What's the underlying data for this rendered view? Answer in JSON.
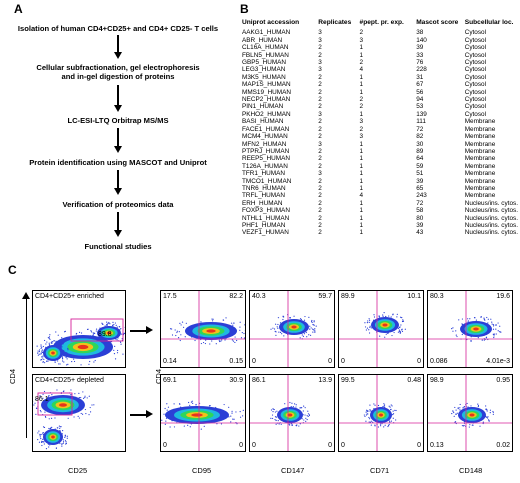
{
  "panels": {
    "a": "A",
    "b": "B",
    "c": "C"
  },
  "flowchart": {
    "steps": [
      "Isolation of human CD4+CD25+ and CD4+ CD25- T cells",
      "Cellular subfractionation, gel electrophoresis\nand in-gel digestion of proteins",
      "LC-ESI-LTQ Orbitrap MS/MS",
      "Protein identification using MASCOT and Uniprot",
      "Verification of proteomics data",
      "Functional studies"
    ]
  },
  "table": {
    "headers": [
      "Uniprot accession",
      "Replicates",
      "#pept. pr. exp.",
      "Mascot score",
      "Subcellular loc."
    ],
    "rows": [
      [
        "AAKG1_HUMAN",
        "3",
        "2",
        "38",
        "Cytosol"
      ],
      [
        "ABR_HUMAN",
        "3",
        "3",
        "140",
        "Cytosol"
      ],
      [
        "CL16A_HUMAN",
        "2",
        "1",
        "39",
        "Cytosol"
      ],
      [
        "FBLN5_HUMAN",
        "2",
        "1",
        "33",
        "Cytosol"
      ],
      [
        "GBP5_HUMAN",
        "3",
        "2",
        "76",
        "Cytosol"
      ],
      [
        "LEG3_HUMAN",
        "3",
        "4",
        "228",
        "Cytosol"
      ],
      [
        "M3K5_HUMAN",
        "2",
        "1",
        "31",
        "Cytosol"
      ],
      [
        "MAP1S_HUMAN",
        "2",
        "1",
        "67",
        "Cytosol"
      ],
      [
        "MMS19_HUMAN",
        "2",
        "1",
        "56",
        "Cytosol"
      ],
      [
        "NECP2_HUMAN",
        "2",
        "2",
        "94",
        "Cytosol"
      ],
      [
        "PIN1_HUMAN",
        "2",
        "2",
        "53",
        "Cytosol"
      ],
      [
        "PKHO2_HUMAN",
        "3",
        "1",
        "139",
        "Cytosol"
      ],
      [
        "BASI_HUMAN",
        "2",
        "3",
        "111",
        "Membrane"
      ],
      [
        "FACE1_HUMAN",
        "2",
        "2",
        "72",
        "Membrane"
      ],
      [
        "MCM4_HUMAN",
        "2",
        "3",
        "82",
        "Membrane"
      ],
      [
        "MFN2_HUMAN",
        "3",
        "1",
        "30",
        "Membrane"
      ],
      [
        "PTPRJ_HUMAN",
        "2",
        "1",
        "89",
        "Membrane"
      ],
      [
        "REEP5_HUMAN",
        "2",
        "1",
        "64",
        "Membrane"
      ],
      [
        "T126A_HUMAN",
        "2",
        "1",
        "59",
        "Membrane"
      ],
      [
        "TFR1_HUMAN",
        "3",
        "1",
        "51",
        "Membrane"
      ],
      [
        "TMCO1_HUMAN",
        "2",
        "1",
        "39",
        "Membrane"
      ],
      [
        "TNR6_HUMAN",
        "2",
        "1",
        "65",
        "Membrane"
      ],
      [
        "TRFL_HUMAN",
        "2",
        "4",
        "243",
        "Membrane"
      ],
      [
        "ERH_HUMAN",
        "2",
        "1",
        "72",
        "Nucleus/ins. cytos."
      ],
      [
        "FOXP3_HUMAN",
        "2",
        "1",
        "58",
        "Nucleus/ins. cytos."
      ],
      [
        "NTHL1_HUMAN",
        "2",
        "1",
        "80",
        "Nucleus/ins. cytos."
      ],
      [
        "PHF1_HUMAN",
        "2",
        "1",
        "39",
        "Nucleus/ins. cytos."
      ],
      [
        "VEZF1_HUMAN",
        "2",
        "1",
        "43",
        "Nucleus/ins. cytos."
      ]
    ]
  },
  "flow_cytometry": {
    "y_axis_label": "CD4",
    "gate_plots": [
      {
        "title": "CD4+CD25+ enriched",
        "gate_value": "89.8"
      },
      {
        "title": "CD4+CD25+ depleted",
        "gate_value": "86.1"
      }
    ],
    "gate_x_label": "CD25",
    "marker_y_label": "CD4",
    "markers": [
      {
        "name": "CD95",
        "enriched": {
          "ul": "17.5",
          "ur": "82.2",
          "ll": "0.14",
          "lr": "0.15"
        },
        "depleted": {
          "ul": "69.1",
          "ur": "30.9",
          "ll": "0",
          "lr": "0"
        }
      },
      {
        "name": "CD147",
        "enriched": {
          "ul": "40.3",
          "ur": "59.7",
          "ll": "0",
          "lr": "0"
        },
        "depleted": {
          "ul": "86.1",
          "ur": "13.9",
          "ll": "0",
          "lr": "0"
        }
      },
      {
        "name": "CD71",
        "enriched": {
          "ul": "89.9",
          "ur": "10.1",
          "ll": "0",
          "lr": "0"
        },
        "depleted": {
          "ul": "99.5",
          "ur": "0.48",
          "ll": "0",
          "lr": "0"
        }
      },
      {
        "name": "CD148",
        "enriched": {
          "ul": "80.3",
          "ur": "19.6",
          "ll": "0.086",
          "lr": "4.01e-3"
        },
        "depleted": {
          "ul": "98.9",
          "ur": "0.95",
          "ll": "0.13",
          "lr": "0.02"
        }
      }
    ]
  },
  "colors": {
    "quadrant_line": "#d6209a",
    "gate_box": "#d6209a",
    "density_low": "#2b3fd6",
    "density_mid": "#2fd65a",
    "density_high": "#f2c21b",
    "density_peak": "#e8331c"
  }
}
